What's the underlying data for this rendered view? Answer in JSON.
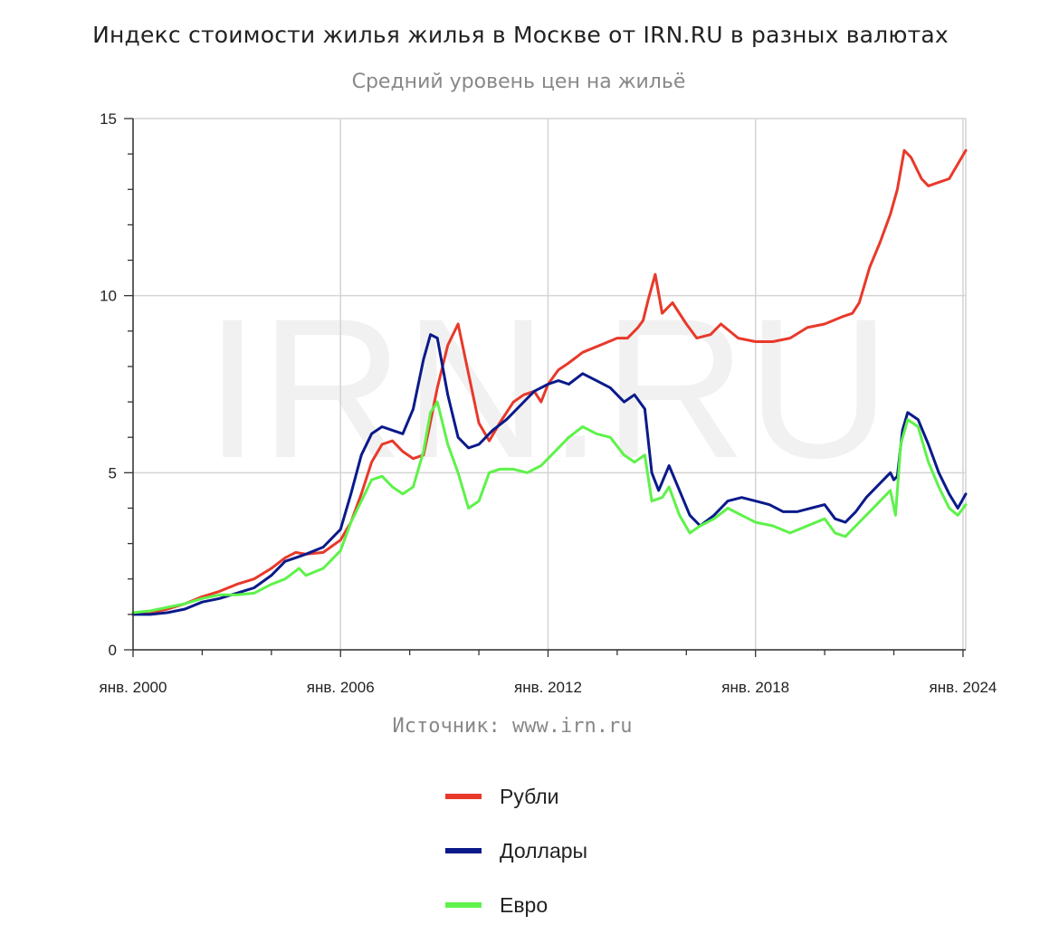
{
  "title": "Индекс стоимости жилья жилья в Москве от IRN.RU в разных валютах",
  "subtitle": "Средний уровень цен на жильё",
  "source": "Источник: www.irn.ru",
  "watermark": "IRN.RU",
  "chart_data": {
    "type": "line",
    "title": "Индекс стоимости жилья жилья в Москве от IRN.RU в разных валютах",
    "subtitle": "Средний уровень цен на жильё",
    "xlim": [
      2000,
      2024.08
    ],
    "ylim": [
      0,
      15
    ],
    "y_ticks": [
      0,
      5,
      10,
      15
    ],
    "x_tick_labels": [
      "янв. 2000",
      "янв. 2006",
      "янв. 2012",
      "янв. 2018",
      "янв. 2024"
    ],
    "x_tick_values": [
      2000,
      2006,
      2012,
      2018,
      2024
    ],
    "grid": true,
    "legend_position": "bottom",
    "series": [
      {
        "name": "Рубли",
        "color": "#e8392a",
        "x": [
          2000,
          2000.5,
          2001,
          2001.5,
          2002,
          2002.5,
          2003,
          2003.5,
          2004,
          2004.4,
          2004.7,
          2005,
          2005.5,
          2006,
          2006.3,
          2006.6,
          2006.9,
          2007.2,
          2007.5,
          2007.8,
          2008.1,
          2008.4,
          2008.55,
          2008.8,
          2009.1,
          2009.4,
          2009.7,
          2010,
          2010.3,
          2010.6,
          2011,
          2011.3,
          2011.6,
          2011.8,
          2012,
          2012.3,
          2012.6,
          2013,
          2013.5,
          2014,
          2014.3,
          2014.6,
          2014.75,
          2014.9,
          2015.1,
          2015.3,
          2015.6,
          2016,
          2016.3,
          2016.7,
          2017,
          2017.5,
          2018,
          2018.5,
          2019,
          2019.5,
          2020,
          2020.5,
          2020.8,
          2021,
          2021.3,
          2021.6,
          2021.9,
          2022.1,
          2022.3,
          2022.5,
          2022.8,
          2023,
          2023.3,
          2023.6,
          2023.9,
          2024.08
        ],
        "values": [
          1.0,
          1.05,
          1.15,
          1.3,
          1.5,
          1.65,
          1.85,
          2.0,
          2.3,
          2.6,
          2.75,
          2.7,
          2.75,
          3.1,
          3.6,
          4.4,
          5.3,
          5.8,
          5.9,
          5.6,
          5.4,
          5.5,
          6.2,
          7.4,
          8.6,
          9.2,
          7.8,
          6.4,
          5.9,
          6.4,
          7.0,
          7.2,
          7.3,
          7.0,
          7.5,
          7.9,
          8.1,
          8.4,
          8.6,
          8.8,
          8.8,
          9.1,
          9.3,
          9.9,
          10.6,
          9.5,
          9.8,
          9.2,
          8.8,
          8.9,
          9.2,
          8.8,
          8.7,
          8.7,
          8.8,
          9.1,
          9.2,
          9.4,
          9.5,
          9.8,
          10.8,
          11.5,
          12.3,
          13.0,
          14.1,
          13.9,
          13.3,
          13.1,
          13.2,
          13.3,
          13.8,
          14.1
        ]
      },
      {
        "name": "Доллары",
        "color": "#0a1a8a",
        "x": [
          2000,
          2000.5,
          2001,
          2001.5,
          2002,
          2002.5,
          2003,
          2003.5,
          2004,
          2004.4,
          2004.7,
          2005,
          2005.5,
          2006,
          2006.3,
          2006.6,
          2006.9,
          2007.2,
          2007.5,
          2007.8,
          2008.1,
          2008.4,
          2008.6,
          2008.8,
          2009.1,
          2009.4,
          2009.7,
          2010,
          2010.4,
          2010.8,
          2011.2,
          2011.6,
          2012,
          2012.3,
          2012.6,
          2013,
          2013.4,
          2013.8,
          2014.2,
          2014.5,
          2014.8,
          2015.0,
          2015.2,
          2015.5,
          2015.8,
          2016.1,
          2016.4,
          2016.8,
          2017.2,
          2017.6,
          2018,
          2018.4,
          2018.8,
          2019.2,
          2019.6,
          2020,
          2020.3,
          2020.6,
          2020.9,
          2021.2,
          2021.6,
          2021.9,
          2022.0,
          2022.1,
          2022.25,
          2022.4,
          2022.7,
          2023.0,
          2023.3,
          2023.6,
          2023.85,
          2024.08
        ],
        "values": [
          1.0,
          1.0,
          1.05,
          1.15,
          1.35,
          1.45,
          1.6,
          1.75,
          2.1,
          2.5,
          2.6,
          2.7,
          2.9,
          3.4,
          4.4,
          5.5,
          6.1,
          6.3,
          6.2,
          6.1,
          6.8,
          8.2,
          8.9,
          8.8,
          7.2,
          6.0,
          5.7,
          5.8,
          6.2,
          6.5,
          6.9,
          7.3,
          7.5,
          7.6,
          7.5,
          7.8,
          7.6,
          7.4,
          7.0,
          7.2,
          6.8,
          5.0,
          4.5,
          5.2,
          4.5,
          3.8,
          3.5,
          3.8,
          4.2,
          4.3,
          4.2,
          4.1,
          3.9,
          3.9,
          4.0,
          4.1,
          3.7,
          3.6,
          3.9,
          4.3,
          4.7,
          5.0,
          4.8,
          4.9,
          6.2,
          6.7,
          6.5,
          5.8,
          5.0,
          4.4,
          4.0,
          4.4
        ]
      },
      {
        "name": "Евро",
        "color": "#5ef24a",
        "x": [
          2000,
          2000.5,
          2001,
          2001.5,
          2002,
          2002.5,
          2003,
          2003.5,
          2004,
          2004.4,
          2004.8,
          2005,
          2005.5,
          2006,
          2006.3,
          2006.6,
          2006.9,
          2007.2,
          2007.5,
          2007.8,
          2008.1,
          2008.4,
          2008.6,
          2008.8,
          2009.1,
          2009.4,
          2009.7,
          2010,
          2010.3,
          2010.6,
          2011,
          2011.4,
          2011.8,
          2012.2,
          2012.6,
          2013,
          2013.4,
          2013.8,
          2014.2,
          2014.5,
          2014.8,
          2015.0,
          2015.3,
          2015.5,
          2015.8,
          2016.1,
          2016.4,
          2016.8,
          2017.2,
          2017.6,
          2018,
          2018.5,
          2019,
          2019.5,
          2020,
          2020.3,
          2020.6,
          2020.9,
          2021.3,
          2021.7,
          2021.9,
          2022.05,
          2022.2,
          2022.4,
          2022.7,
          2023.0,
          2023.3,
          2023.6,
          2023.85,
          2024.08
        ],
        "values": [
          1.05,
          1.1,
          1.2,
          1.3,
          1.45,
          1.55,
          1.55,
          1.6,
          1.85,
          2.0,
          2.3,
          2.1,
          2.3,
          2.8,
          3.6,
          4.2,
          4.8,
          4.9,
          4.6,
          4.4,
          4.6,
          5.6,
          6.7,
          7.0,
          5.8,
          5.0,
          4.0,
          4.2,
          5.0,
          5.1,
          5.1,
          5.0,
          5.2,
          5.6,
          6.0,
          6.3,
          6.1,
          6.0,
          5.5,
          5.3,
          5.5,
          4.2,
          4.3,
          4.6,
          3.8,
          3.3,
          3.5,
          3.7,
          4.0,
          3.8,
          3.6,
          3.5,
          3.3,
          3.5,
          3.7,
          3.3,
          3.2,
          3.5,
          3.9,
          4.3,
          4.5,
          3.8,
          5.8,
          6.5,
          6.3,
          5.3,
          4.6,
          4.0,
          3.8,
          4.1
        ]
      }
    ]
  },
  "legend": [
    {
      "label": "Рубли",
      "color": "#e8392a"
    },
    {
      "label": "Доллары",
      "color": "#0a1a8a"
    },
    {
      "label": "Евро",
      "color": "#5ef24a"
    }
  ]
}
